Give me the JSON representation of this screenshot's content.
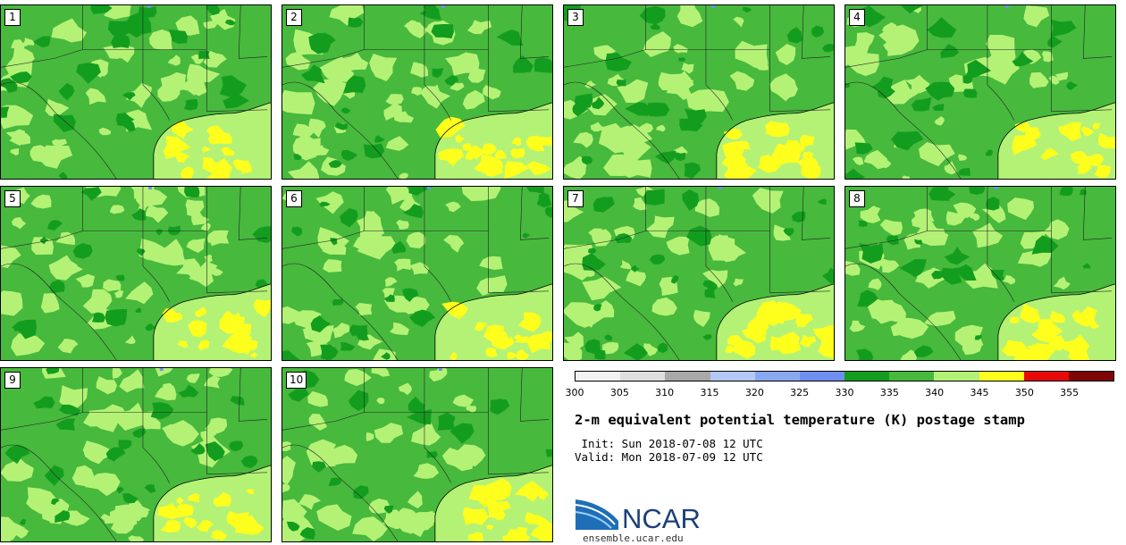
{
  "panels": [
    {
      "label": "1"
    },
    {
      "label": "2"
    },
    {
      "label": "3"
    },
    {
      "label": "4"
    },
    {
      "label": "5"
    },
    {
      "label": "6"
    },
    {
      "label": "7"
    },
    {
      "label": "8"
    },
    {
      "label": "9"
    },
    {
      "label": "10"
    }
  ],
  "colorbar": {
    "colors": [
      "#f2f2f2",
      "#dedede",
      "#a9a9a9",
      "#b4c8f5",
      "#8aa8f0",
      "#6f8ff0",
      "#139d1f",
      "#47b93d",
      "#b4f276",
      "#ffff1e",
      "#e60a0a",
      "#7d0505"
    ],
    "tick_labels": [
      "300",
      "305",
      "310",
      "315",
      "320",
      "325",
      "330",
      "335",
      "340",
      "345",
      "350",
      "355"
    ]
  },
  "map_colors": {
    "green_dark": "#139d1f",
    "green_mid": "#47b93d",
    "green_light": "#b4f276",
    "yellow": "#ffff1e",
    "blue": "#6f8ff0"
  },
  "title": "2-m equivalent potential temperature (K) postage stamp",
  "init_line": " Init: Sun 2018-07-08 12 UTC",
  "valid_line": "Valid: Mon 2018-07-09 12 UTC",
  "logo": {
    "name": "NCAR",
    "url": "ensemble.ucar.edu"
  }
}
